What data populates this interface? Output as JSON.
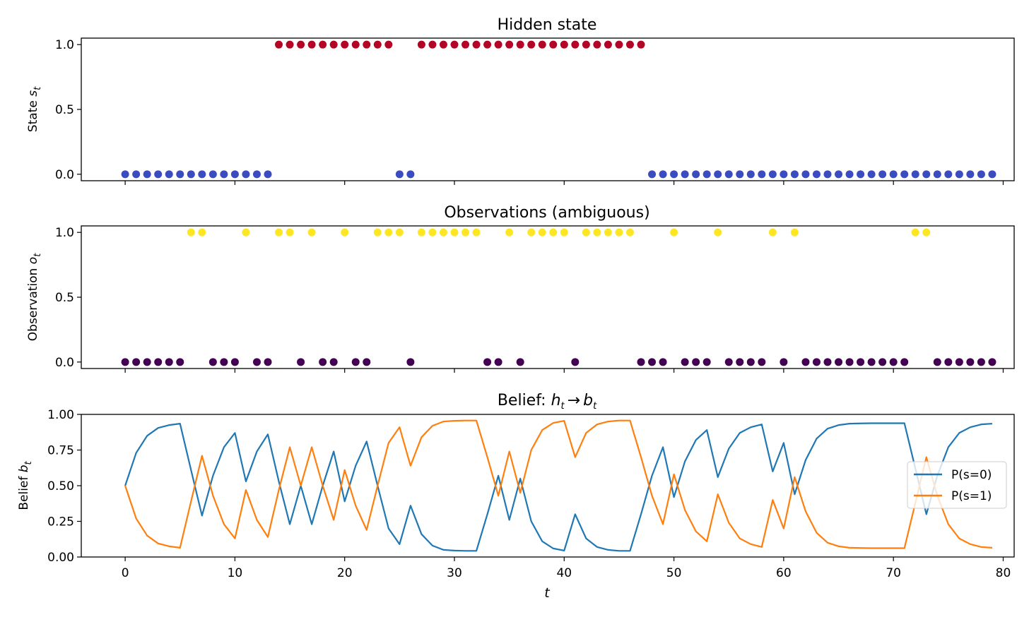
{
  "figure": {
    "background": "#ffffff"
  },
  "chart_data": [
    {
      "type": "scatter",
      "title": "Hidden state",
      "ylabel_text": "State ",
      "ylabel_var": "s",
      "ylabel_sub": "t",
      "xlim": [
        -4,
        81
      ],
      "ylim": [
        -0.05,
        1.05
      ],
      "xticks": [
        0,
        10,
        20,
        30,
        40,
        50,
        60,
        70,
        80
      ],
      "yticks": [
        0.0,
        0.5,
        1.0
      ],
      "ytick_labels": [
        "0.0",
        "0.5",
        "1.0"
      ],
      "show_xtick_labels": false,
      "colors": {
        "0": "#3b4cc0",
        "1": "#b40426"
      },
      "x_start": 0,
      "values": [
        0,
        0,
        0,
        0,
        0,
        0,
        0,
        0,
        0,
        0,
        0,
        0,
        0,
        0,
        1,
        1,
        1,
        1,
        1,
        1,
        1,
        1,
        1,
        1,
        1,
        0,
        0,
        1,
        1,
        1,
        1,
        1,
        1,
        1,
        1,
        1,
        1,
        1,
        1,
        1,
        1,
        1,
        1,
        1,
        1,
        1,
        1,
        1,
        0,
        0,
        0,
        0,
        0,
        0,
        0,
        0,
        0,
        0,
        0,
        0,
        0,
        0,
        0,
        0,
        0,
        0,
        0,
        0,
        0,
        0,
        0,
        0,
        0,
        0,
        0,
        0,
        0,
        0,
        0,
        0
      ]
    },
    {
      "type": "scatter",
      "title": "Observations (ambiguous)",
      "ylabel_text": "Observation ",
      "ylabel_var": "o",
      "ylabel_sub": "t",
      "xlim": [
        -4,
        81
      ],
      "ylim": [
        -0.05,
        1.05
      ],
      "xticks": [
        0,
        10,
        20,
        30,
        40,
        50,
        60,
        70,
        80
      ],
      "yticks": [
        0.0,
        0.5,
        1.0
      ],
      "ytick_labels": [
        "0.0",
        "0.5",
        "1.0"
      ],
      "show_xtick_labels": false,
      "colors": {
        "0": "#440154",
        "1": "#fde725"
      },
      "x_start": 0,
      "values": [
        0,
        0,
        0,
        0,
        0,
        0,
        1,
        1,
        0,
        0,
        0,
        1,
        0,
        0,
        1,
        1,
        0,
        1,
        0,
        0,
        1,
        0,
        0,
        1,
        1,
        1,
        0,
        1,
        1,
        1,
        1,
        1,
        1,
        0,
        0,
        1,
        0,
        1,
        1,
        1,
        1,
        0,
        1,
        1,
        1,
        1,
        1,
        0,
        0,
        0,
        1,
        0,
        0,
        0,
        1,
        0,
        0,
        0,
        0,
        1,
        0,
        1,
        0,
        0,
        0,
        0,
        0,
        0,
        0,
        0,
        0,
        0,
        1,
        1,
        0,
        0,
        0,
        0,
        0,
        0
      ]
    },
    {
      "type": "line",
      "title_text": "Belief: ",
      "title_h": "h",
      "title_arrow": "→",
      "title_b": "b",
      "title_sub": "t",
      "ylabel_text": "Belief ",
      "ylabel_var": "b",
      "ylabel_sub": "t",
      "xlabel": "t",
      "xlim": [
        -4,
        81
      ],
      "ylim": [
        0,
        1
      ],
      "xticks": [
        0,
        10,
        20,
        30,
        40,
        50,
        60,
        70,
        80
      ],
      "xtick_labels": [
        "0",
        "10",
        "20",
        "30",
        "40",
        "50",
        "60",
        "70",
        "80"
      ],
      "yticks": [
        0,
        0.25,
        0.5,
        0.75,
        1.0
      ],
      "ytick_labels": [
        "0.00",
        "0.25",
        "0.50",
        "0.75",
        "1.00"
      ],
      "legend_position": "center-right",
      "x_start": 0,
      "series": [
        {
          "name": "P(s=0)",
          "color": "#1f77b4",
          "values": [
            0.5,
            0.73,
            0.85,
            0.905,
            0.925,
            0.935,
            0.61,
            0.29,
            0.57,
            0.77,
            0.87,
            0.53,
            0.74,
            0.86,
            0.53,
            0.23,
            0.5,
            0.23,
            0.5,
            0.74,
            0.39,
            0.64,
            0.81,
            0.5,
            0.2,
            0.09,
            0.36,
            0.16,
            0.08,
            0.05,
            0.045,
            0.043,
            0.043,
            0.3,
            0.57,
            0.26,
            0.55,
            0.25,
            0.11,
            0.06,
            0.045,
            0.3,
            0.13,
            0.07,
            0.05,
            0.043,
            0.043,
            0.3,
            0.57,
            0.77,
            0.42,
            0.67,
            0.82,
            0.89,
            0.56,
            0.76,
            0.87,
            0.91,
            0.93,
            0.6,
            0.8,
            0.44,
            0.68,
            0.83,
            0.9,
            0.925,
            0.935,
            0.937,
            0.938,
            0.938,
            0.938,
            0.938,
            0.62,
            0.3,
            0.57,
            0.77,
            0.87,
            0.91,
            0.93,
            0.935
          ]
        },
        {
          "name": "P(s=1)",
          "color": "#ff7f0e",
          "values": [
            0.5,
            0.27,
            0.15,
            0.095,
            0.075,
            0.065,
            0.39,
            0.71,
            0.43,
            0.23,
            0.13,
            0.47,
            0.26,
            0.14,
            0.47,
            0.77,
            0.5,
            0.77,
            0.5,
            0.26,
            0.61,
            0.36,
            0.19,
            0.5,
            0.8,
            0.91,
            0.64,
            0.84,
            0.92,
            0.95,
            0.955,
            0.957,
            0.957,
            0.7,
            0.43,
            0.74,
            0.45,
            0.75,
            0.89,
            0.94,
            0.955,
            0.7,
            0.87,
            0.93,
            0.95,
            0.957,
            0.957,
            0.7,
            0.43,
            0.23,
            0.58,
            0.33,
            0.18,
            0.11,
            0.44,
            0.24,
            0.13,
            0.09,
            0.07,
            0.4,
            0.2,
            0.56,
            0.32,
            0.17,
            0.1,
            0.075,
            0.065,
            0.063,
            0.062,
            0.062,
            0.062,
            0.062,
            0.38,
            0.7,
            0.43,
            0.23,
            0.13,
            0.09,
            0.07,
            0.065
          ]
        }
      ]
    }
  ]
}
